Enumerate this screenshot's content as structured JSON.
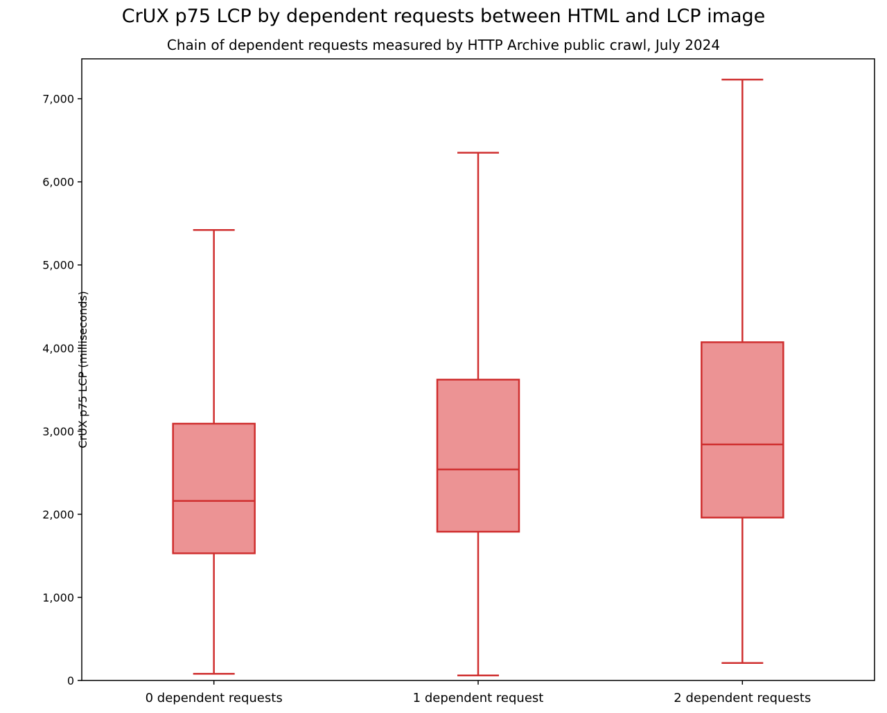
{
  "chart_data": {
    "type": "boxplot",
    "title": "CrUX p75 LCP by dependent requests between HTML and LCP image",
    "subtitle": "Chain of dependent requests measured by HTTP Archive public crawl, July 2024",
    "ylabel": "CrUX p75 LCP (milliseconds)",
    "xlabel": "",
    "categories": [
      "0 dependent requests",
      "1 dependent request",
      "2 dependent requests"
    ],
    "series": [
      {
        "label": "0 dependent requests",
        "whisker_low": 80,
        "q1": 1530,
        "median": 2160,
        "q3": 3090,
        "whisker_high": 5420
      },
      {
        "label": "1 dependent request",
        "whisker_low": 60,
        "q1": 1790,
        "median": 2540,
        "q3": 3620,
        "whisker_high": 6350
      },
      {
        "label": "2 dependent requests",
        "whisker_low": 210,
        "q1": 1960,
        "median": 2840,
        "q3": 4070,
        "whisker_high": 7230
      }
    ],
    "yticks": [
      {
        "value": 0,
        "label": "0"
      },
      {
        "value": 1000,
        "label": "1,000"
      },
      {
        "value": 2000,
        "label": "2,000"
      },
      {
        "value": 3000,
        "label": "3,000"
      },
      {
        "value": 4000,
        "label": "4,000"
      },
      {
        "value": 5000,
        "label": "5,000"
      },
      {
        "value": 6000,
        "label": "6,000"
      },
      {
        "value": 7000,
        "label": "7,000"
      }
    ],
    "ylim": [
      0,
      7480
    ],
    "grid": false,
    "legend": "none",
    "colors": {
      "box_fill": "#ec9394",
      "box_edge": "#cf2e2e",
      "axis": "#000000"
    }
  }
}
